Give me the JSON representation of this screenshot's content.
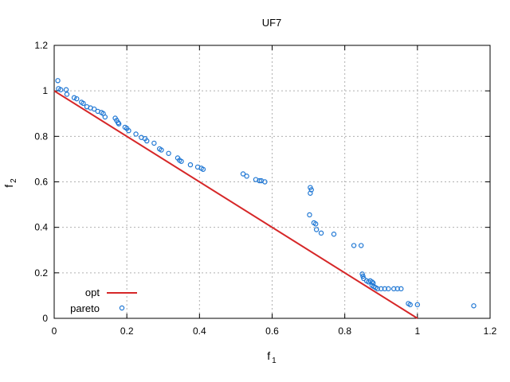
{
  "chart_data": {
    "type": "scatter",
    "title": "UF7",
    "xlabel": {
      "main": "f",
      "sub": "1"
    },
    "ylabel": {
      "main": "f",
      "sub": "2"
    },
    "xlim": [
      0,
      1.2
    ],
    "ylim": [
      0,
      1.2
    ],
    "xticks": [
      "0",
      "0.2",
      "0.4",
      "0.6",
      "0.8",
      "1",
      "1.2"
    ],
    "yticks": [
      "0",
      "0.2",
      "0.4",
      "0.6",
      "0.8",
      "1",
      "1.2"
    ],
    "grid": true,
    "legend_position": "bottom-left",
    "series": [
      {
        "name": "opt",
        "kind": "line",
        "color": "#d62728",
        "points": [
          [
            0,
            1
          ],
          [
            1,
            0
          ]
        ]
      },
      {
        "name": "pareto",
        "kind": "points",
        "marker": "open-circle",
        "color": "#1f77d4",
        "points": [
          [
            0.01,
            1.045
          ],
          [
            0.012,
            1.01
          ],
          [
            0.018,
            1.005
          ],
          [
            0.033,
            1.005
          ],
          [
            0.035,
            0.985
          ],
          [
            0.055,
            0.97
          ],
          [
            0.062,
            0.965
          ],
          [
            0.075,
            0.95
          ],
          [
            0.08,
            0.945
          ],
          [
            0.09,
            0.93
          ],
          [
            0.1,
            0.925
          ],
          [
            0.11,
            0.92
          ],
          [
            0.12,
            0.91
          ],
          [
            0.13,
            0.905
          ],
          [
            0.135,
            0.9
          ],
          [
            0.14,
            0.885
          ],
          [
            0.168,
            0.88
          ],
          [
            0.172,
            0.87
          ],
          [
            0.176,
            0.86
          ],
          [
            0.178,
            0.855
          ],
          [
            0.195,
            0.84
          ],
          [
            0.2,
            0.835
          ],
          [
            0.205,
            0.825
          ],
          [
            0.225,
            0.81
          ],
          [
            0.24,
            0.795
          ],
          [
            0.25,
            0.79
          ],
          [
            0.255,
            0.78
          ],
          [
            0.275,
            0.77
          ],
          [
            0.29,
            0.745
          ],
          [
            0.295,
            0.74
          ],
          [
            0.315,
            0.725
          ],
          [
            0.34,
            0.705
          ],
          [
            0.345,
            0.695
          ],
          [
            0.35,
            0.69
          ],
          [
            0.375,
            0.675
          ],
          [
            0.395,
            0.665
          ],
          [
            0.405,
            0.66
          ],
          [
            0.41,
            0.655
          ],
          [
            0.52,
            0.635
          ],
          [
            0.53,
            0.625
          ],
          [
            0.555,
            0.61
          ],
          [
            0.565,
            0.605
          ],
          [
            0.57,
            0.605
          ],
          [
            0.58,
            0.6
          ],
          [
            0.705,
            0.575
          ],
          [
            0.708,
            0.565
          ],
          [
            0.705,
            0.55
          ],
          [
            0.703,
            0.455
          ],
          [
            0.715,
            0.42
          ],
          [
            0.72,
            0.415
          ],
          [
            0.722,
            0.39
          ],
          [
            0.735,
            0.375
          ],
          [
            0.77,
            0.37
          ],
          [
            0.825,
            0.32
          ],
          [
            0.845,
            0.32
          ],
          [
            0.848,
            0.195
          ],
          [
            0.85,
            0.185
          ],
          [
            0.852,
            0.175
          ],
          [
            0.86,
            0.165
          ],
          [
            0.865,
            0.16
          ],
          [
            0.87,
            0.165
          ],
          [
            0.875,
            0.16
          ],
          [
            0.878,
            0.155
          ],
          [
            0.875,
            0.145
          ],
          [
            0.88,
            0.14
          ],
          [
            0.885,
            0.135
          ],
          [
            0.89,
            0.13
          ],
          [
            0.9,
            0.13
          ],
          [
            0.91,
            0.13
          ],
          [
            0.92,
            0.13
          ],
          [
            0.935,
            0.13
          ],
          [
            0.945,
            0.13
          ],
          [
            0.955,
            0.13
          ],
          [
            0.975,
            0.065
          ],
          [
            0.98,
            0.06
          ],
          [
            1.0,
            0.06
          ],
          [
            1.155,
            0.055
          ]
        ]
      }
    ]
  }
}
